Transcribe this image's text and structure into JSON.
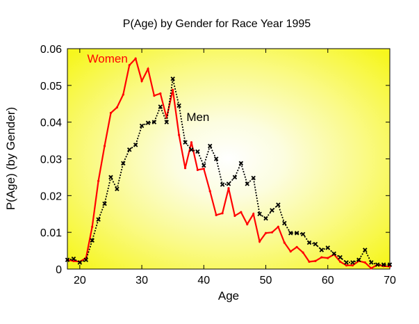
{
  "chart_data": {
    "type": "line",
    "title": "P(Age) by Gender for Race Year 1995",
    "xlabel": "Age",
    "ylabel": "P(Age) (by Gender)",
    "xlim": [
      18,
      70
    ],
    "ylim": [
      0,
      0.06
    ],
    "x_ticks": [
      20,
      30,
      40,
      50,
      60,
      70
    ],
    "y_ticks": [
      0,
      0.01,
      0.02,
      0.03,
      0.04,
      0.05,
      0.06
    ],
    "x_tick_labels": [
      "20",
      "30",
      "40",
      "50",
      "60",
      "70"
    ],
    "y_tick_labels": [
      "0",
      "0.01",
      "0.02",
      "0.03",
      "0.04",
      "0.05",
      "0.06"
    ],
    "grid": false,
    "background": "radial gradient, white center to yellow edges",
    "series": [
      {
        "name": "Women",
        "color": "#ff0000",
        "line_style": "solid",
        "marker": "dot",
        "x": [
          18,
          19,
          20,
          21,
          22,
          23,
          24,
          25,
          26,
          27,
          28,
          29,
          30,
          31,
          32,
          33,
          34,
          35,
          36,
          37,
          38,
          39,
          40,
          41,
          42,
          43,
          44,
          45,
          46,
          47,
          48,
          49,
          50,
          51,
          52,
          53,
          54,
          55,
          56,
          57,
          58,
          59,
          60,
          61,
          62,
          63,
          64,
          65,
          66,
          67,
          68,
          69,
          70
        ],
        "y": [
          0.0025,
          0.0022,
          0.002,
          0.003,
          0.0115,
          0.024,
          0.0335,
          0.0425,
          0.044,
          0.0475,
          0.0555,
          0.0573,
          0.0512,
          0.0545,
          0.0472,
          0.0478,
          0.0412,
          0.0488,
          0.0365,
          0.0275,
          0.0345,
          0.027,
          0.0273,
          0.0212,
          0.0147,
          0.0152,
          0.022,
          0.0145,
          0.0155,
          0.0122,
          0.015,
          0.0075,
          0.0098,
          0.01,
          0.0115,
          0.0072,
          0.0048,
          0.006,
          0.0045,
          0.002,
          0.0022,
          0.0032,
          0.003,
          0.004,
          0.002,
          0.001,
          0.001,
          0.0022,
          0.0018,
          0.0002,
          0.0012,
          0.0008,
          0.0007
        ]
      },
      {
        "name": "Men",
        "color": "#000000",
        "line_style": "dotted",
        "marker": "x",
        "x": [
          18,
          19,
          20,
          21,
          22,
          23,
          24,
          25,
          26,
          27,
          28,
          29,
          30,
          31,
          32,
          33,
          34,
          35,
          36,
          37,
          38,
          39,
          40,
          41,
          42,
          43,
          44,
          45,
          46,
          47,
          48,
          49,
          50,
          51,
          52,
          53,
          54,
          55,
          56,
          57,
          58,
          59,
          60,
          61,
          62,
          63,
          64,
          65,
          66,
          67,
          68,
          69,
          70
        ],
        "y": [
          0.0025,
          0.0028,
          0.0018,
          0.0025,
          0.0078,
          0.0135,
          0.0178,
          0.025,
          0.0218,
          0.0288,
          0.0325,
          0.0338,
          0.039,
          0.0398,
          0.04,
          0.0442,
          0.04,
          0.0518,
          0.0445,
          0.0345,
          0.0325,
          0.032,
          0.0282,
          0.0335,
          0.03,
          0.023,
          0.0232,
          0.025,
          0.0288,
          0.0232,
          0.0248,
          0.015,
          0.0138,
          0.016,
          0.0175,
          0.0125,
          0.0098,
          0.0098,
          0.0095,
          0.0072,
          0.0068,
          0.0052,
          0.0058,
          0.0042,
          0.0032,
          0.0018,
          0.0018,
          0.0025,
          0.0052,
          0.0018,
          0.0012,
          0.0012,
          0.0012
        ]
      }
    ],
    "annotations": [
      {
        "text": "Women",
        "x": 21.2,
        "y": 0.0562,
        "color": "#ff0000"
      },
      {
        "text": "Men",
        "x": 37.2,
        "y": 0.0403,
        "color": "#000000"
      }
    ]
  }
}
